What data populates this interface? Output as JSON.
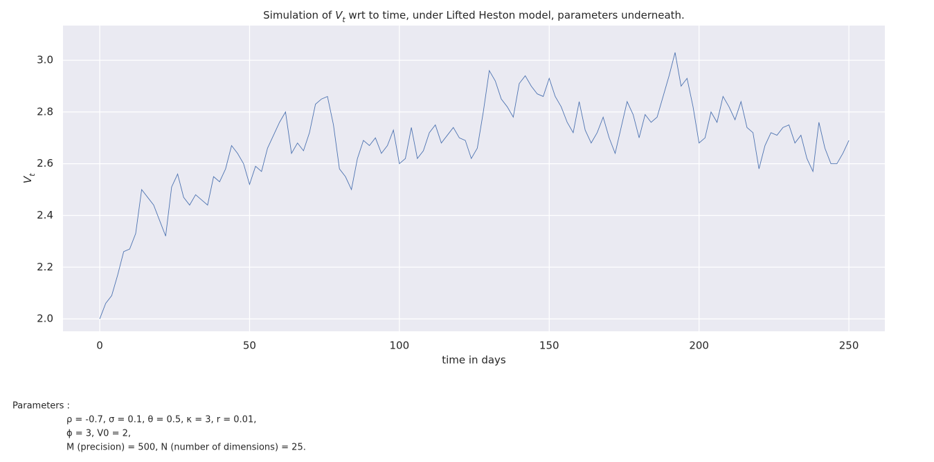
{
  "chart_data": {
    "type": "line",
    "title": [
      "Simulation of ",
      "V",
      "t",
      " wrt to time, under Lifted Heston model, parameters underneath."
    ],
    "xlabel": "time in days",
    "ylabel": [
      "V",
      "t"
    ],
    "x": [
      0,
      2,
      4,
      6,
      8,
      10,
      12,
      14,
      16,
      18,
      20,
      22,
      24,
      26,
      28,
      30,
      32,
      34,
      36,
      38,
      40,
      42,
      44,
      46,
      48,
      50,
      52,
      54,
      56,
      58,
      60,
      62,
      64,
      66,
      68,
      70,
      72,
      74,
      76,
      78,
      80,
      82,
      84,
      86,
      88,
      90,
      92,
      94,
      96,
      98,
      100,
      102,
      104,
      106,
      108,
      110,
      112,
      114,
      116,
      118,
      120,
      122,
      124,
      126,
      128,
      130,
      132,
      134,
      136,
      138,
      140,
      142,
      144,
      146,
      148,
      150,
      152,
      154,
      156,
      158,
      160,
      162,
      164,
      166,
      168,
      170,
      172,
      174,
      176,
      178,
      180,
      182,
      184,
      186,
      188,
      190,
      192,
      194,
      196,
      198,
      200,
      202,
      204,
      206,
      208,
      210,
      212,
      214,
      216,
      218,
      220,
      222,
      224,
      226,
      228,
      230,
      232,
      234,
      236,
      238,
      240,
      242,
      244,
      246,
      248,
      250
    ],
    "series": [
      {
        "color": "#4c72b0",
        "values": [
          2.0,
          2.06,
          2.09,
          2.17,
          2.26,
          2.27,
          2.33,
          2.5,
          2.47,
          2.44,
          2.38,
          2.32,
          2.51,
          2.56,
          2.47,
          2.44,
          2.48,
          2.46,
          2.44,
          2.55,
          2.53,
          2.58,
          2.67,
          2.64,
          2.6,
          2.52,
          2.59,
          2.57,
          2.66,
          2.71,
          2.76,
          2.8,
          2.64,
          2.68,
          2.65,
          2.72,
          2.83,
          2.85,
          2.86,
          2.75,
          2.58,
          2.55,
          2.5,
          2.62,
          2.69,
          2.67,
          2.7,
          2.64,
          2.67,
          2.73,
          2.6,
          2.62,
          2.74,
          2.62,
          2.65,
          2.72,
          2.75,
          2.68,
          2.71,
          2.74,
          2.7,
          2.69,
          2.62,
          2.66,
          2.8,
          2.96,
          2.92,
          2.85,
          2.82,
          2.78,
          2.91,
          2.94,
          2.9,
          2.87,
          2.86,
          2.93,
          2.86,
          2.82,
          2.76,
          2.72,
          2.84,
          2.73,
          2.68,
          2.72,
          2.78,
          2.7,
          2.64,
          2.74,
          2.84,
          2.79,
          2.7,
          2.79,
          2.76,
          2.78,
          2.86,
          2.94,
          3.03,
          2.9,
          2.93,
          2.82,
          2.68,
          2.7,
          2.8,
          2.76,
          2.86,
          2.82,
          2.77,
          2.84,
          2.74,
          2.72,
          2.58,
          2.67,
          2.72,
          2.71,
          2.74,
          2.75,
          2.68,
          2.71,
          2.62,
          2.57,
          2.76,
          2.66,
          2.6,
          2.6,
          2.64,
          2.69
        ]
      }
    ],
    "xlim": [
      -12.25,
      262
    ],
    "ylim": [
      1.952,
      3.134
    ],
    "xticks": [
      0,
      50,
      100,
      150,
      200,
      250
    ],
    "yticks": [
      {
        "value": 2,
        "label": "2.0"
      },
      2.2,
      2.4,
      2.6,
      2.8,
      {
        "value": 3,
        "label": "3.0"
      }
    ],
    "grid": true,
    "annotations": [
      "Parameters :",
      "ρ = -0.7, σ = 0.1,  θ = 0.5, κ = 3, r = 0.01,",
      "ϕ   = 3, V0    = 2,",
      "M (precision) = 500, N (number of dimensions) = 25."
    ]
  }
}
